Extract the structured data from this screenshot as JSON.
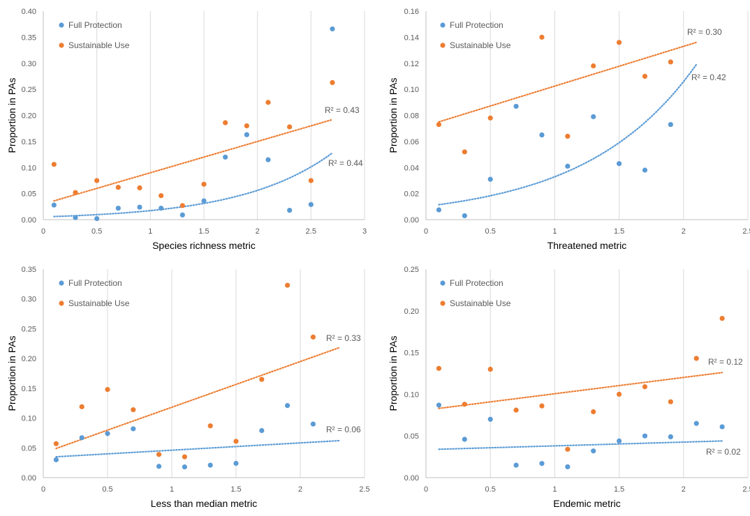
{
  "colors": {
    "full": "#5b9bd5",
    "sustainable": "#ed7d31",
    "grid": "#d9d9d9",
    "axis": "#bfbfbf"
  },
  "chart_data": [
    {
      "type": "scatter",
      "xlabel": "Species richness metric",
      "ylabel": "Proportion in PAs",
      "xlim": [
        0,
        3
      ],
      "ylim": [
        0,
        0.4
      ],
      "xticks": [
        0,
        0.5,
        1,
        1.5,
        2,
        2.5,
        3
      ],
      "xtick_labels": [
        "0",
        "0.5",
        "1",
        "1.5",
        "2",
        "2.5",
        "3"
      ],
      "yticks": [
        0,
        0.05,
        0.1,
        0.15,
        0.2,
        0.25,
        0.3,
        0.35,
        0.4
      ],
      "ytick_labels": [
        "0.00",
        "0.05",
        "0.10",
        "0.15",
        "0.20",
        "0.25",
        "0.30",
        "0.35",
        "0.40"
      ],
      "grid": "vertical",
      "legend": "top-left",
      "series": [
        {
          "name": "Full Protection",
          "x": [
            0.1,
            0.3,
            0.5,
            0.7,
            0.9,
            1.1,
            1.3,
            1.5,
            1.7,
            1.9,
            2.1,
            2.3,
            2.5,
            2.7
          ],
          "y": [
            0.028,
            0.004,
            0.002,
            0.022,
            0.024,
            0.022,
            0.009,
            0.036,
            0.12,
            0.163,
            0.115,
            0.018,
            0.029,
            0.366
          ],
          "trend": {
            "type": "exponential",
            "x": [
              0.1,
              2.7
            ],
            "y": [
              0.006,
              0.128
            ]
          },
          "r2_label": "R² = 0.44"
        },
        {
          "name": "Sustainable Use",
          "x": [
            0.1,
            0.3,
            0.5,
            0.7,
            0.9,
            1.1,
            1.3,
            1.5,
            1.7,
            1.9,
            2.1,
            2.3,
            2.5,
            2.7
          ],
          "y": [
            0.106,
            0.052,
            0.075,
            0.062,
            0.061,
            0.046,
            0.027,
            0.068,
            0.186,
            0.18,
            0.225,
            0.178,
            0.075,
            0.263
          ],
          "trend": {
            "type": "linear",
            "x": [
              0.1,
              2.7
            ],
            "y": [
              0.036,
              0.192
            ]
          },
          "r2_label": "R² = 0.43"
        }
      ]
    },
    {
      "type": "scatter",
      "xlabel": "Threatened metric",
      "ylabel": "Proportion in PAs",
      "xlim": [
        0,
        2.5
      ],
      "ylim": [
        0,
        0.16
      ],
      "xticks": [
        0,
        0.5,
        1,
        1.5,
        2,
        2.5
      ],
      "xtick_labels": [
        "0",
        "0.5",
        "1",
        "1.5",
        "2",
        "2.5"
      ],
      "yticks": [
        0,
        0.02,
        0.04,
        0.06,
        0.08,
        0.1,
        0.12,
        0.14,
        0.16
      ],
      "ytick_labels": [
        "0.00",
        "0.02",
        "0.04",
        "0.06",
        "0.08",
        "0.10",
        "0.12",
        "0.14",
        "0.16"
      ],
      "grid": "vertical",
      "legend": "top-left",
      "series": [
        {
          "name": "Full Protection",
          "x": [
            0.1,
            0.3,
            0.5,
            0.7,
            0.9,
            1.1,
            1.3,
            1.5,
            1.7,
            1.9
          ],
          "y": [
            0.0075,
            0.003,
            0.031,
            0.087,
            0.065,
            0.041,
            0.079,
            0.043,
            0.038,
            0.073
          ],
          "trend": {
            "type": "exponential",
            "x": [
              0.1,
              2.1
            ],
            "y": [
              0.0115,
              0.119
            ]
          },
          "r2_label": "R² = 0.42"
        },
        {
          "name": "Sustainable Use",
          "x": [
            0.1,
            0.3,
            0.5,
            0.9,
            1.1,
            1.3,
            1.5,
            1.7,
            1.9
          ],
          "y": [
            0.073,
            0.052,
            0.078,
            0.14,
            0.064,
            0.118,
            0.136,
            0.11,
            0.121
          ],
          "trend": {
            "type": "linear",
            "x": [
              0.1,
              2.1
            ],
            "y": [
              0.075,
              0.136
            ]
          },
          "r2_label": "R² = 0.30"
        }
      ]
    },
    {
      "type": "scatter",
      "xlabel": "Less than median metric",
      "ylabel": "Proportion in PAs",
      "xlim": [
        0,
        2.5
      ],
      "ylim": [
        0,
        0.35
      ],
      "xticks": [
        0,
        0.5,
        1,
        1.5,
        2,
        2.5
      ],
      "xtick_labels": [
        "0",
        "0.5",
        "1",
        "1.5",
        "2",
        "2.5"
      ],
      "yticks": [
        0,
        0.05,
        0.1,
        0.15,
        0.2,
        0.25,
        0.3,
        0.35
      ],
      "ytick_labels": [
        "0.00",
        "0.05",
        "0.10",
        "0.15",
        "0.20",
        "0.25",
        "0.30",
        "0.35"
      ],
      "grid": "vertical",
      "legend": "top-left",
      "series": [
        {
          "name": "Full Protection",
          "x": [
            0.1,
            0.3,
            0.5,
            0.7,
            0.9,
            1.1,
            1.3,
            1.5,
            1.7,
            1.9,
            2.1
          ],
          "y": [
            0.03,
            0.067,
            0.074,
            0.082,
            0.019,
            0.018,
            0.021,
            0.024,
            0.079,
            0.121,
            0.09
          ],
          "trend": {
            "type": "linear",
            "x": [
              0.1,
              2.3
            ],
            "y": [
              0.035,
              0.062
            ]
          },
          "r2_label": "R² = 0.06"
        },
        {
          "name": "Sustainable Use",
          "x": [
            0.1,
            0.3,
            0.5,
            0.7,
            0.9,
            1.1,
            1.3,
            1.5,
            1.7,
            1.9,
            2.1
          ],
          "y": [
            0.057,
            0.119,
            0.148,
            0.114,
            0.039,
            0.035,
            0.087,
            0.061,
            0.165,
            0.323,
            0.236
          ],
          "trend": {
            "type": "linear",
            "x": [
              0.1,
              2.3
            ],
            "y": [
              0.049,
              0.218
            ]
          },
          "r2_label": "R² = 0.33"
        }
      ]
    },
    {
      "type": "scatter",
      "xlabel": "Endemic metric",
      "ylabel": "Proportion in PAs",
      "xlim": [
        0,
        2.5
      ],
      "ylim": [
        0,
        0.25
      ],
      "xticks": [
        0,
        0.5,
        1,
        1.5,
        2,
        2.5
      ],
      "xtick_labels": [
        "0",
        "0.5",
        "1",
        "1.5",
        "2",
        "2.5"
      ],
      "yticks": [
        0,
        0.05,
        0.1,
        0.15,
        0.2,
        0.25
      ],
      "ytick_labels": [
        "0.00",
        "0.05",
        "0.10",
        "0.15",
        "0.20",
        "0.25"
      ],
      "grid": "vertical",
      "legend": "top-left",
      "series": [
        {
          "name": "Full Protection",
          "x": [
            0.1,
            0.3,
            0.5,
            0.7,
            0.9,
            1.1,
            1.3,
            1.5,
            1.7,
            1.9,
            2.1,
            2.3
          ],
          "y": [
            0.087,
            0.046,
            0.07,
            0.015,
            0.017,
            0.013,
            0.032,
            0.044,
            0.05,
            0.049,
            0.065,
            0.061
          ],
          "trend": {
            "type": "linear",
            "x": [
              0.1,
              2.3
            ],
            "y": [
              0.034,
              0.044
            ]
          },
          "r2_label": "R² = 0.02"
        },
        {
          "name": "Sustainable Use",
          "x": [
            0.1,
            0.3,
            0.5,
            0.7,
            0.9,
            1.1,
            1.3,
            1.5,
            1.7,
            1.9,
            2.1,
            2.3
          ],
          "y": [
            0.131,
            0.088,
            0.13,
            0.081,
            0.086,
            0.034,
            0.079,
            0.1,
            0.109,
            0.091,
            0.143,
            0.191
          ],
          "trend": {
            "type": "linear",
            "x": [
              0.1,
              2.3
            ],
            "y": [
              0.083,
              0.126
            ]
          },
          "r2_label": "R² = 0.12"
        }
      ]
    }
  ]
}
